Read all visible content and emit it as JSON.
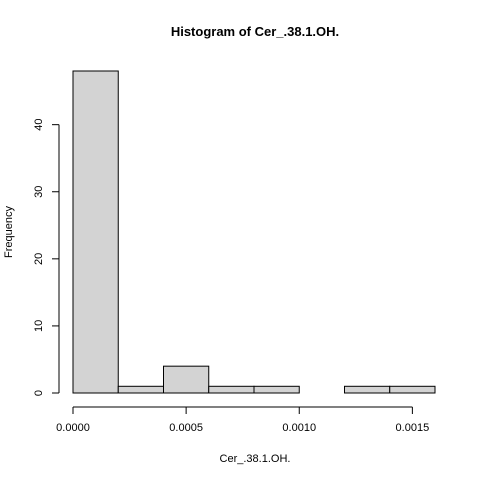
{
  "chart_data": {
    "type": "bar",
    "title": "Histogram of Cer_.38.1.OH.",
    "xlabel": "Cer_.38.1.OH.",
    "ylabel": "Frequency",
    "bins": [
      {
        "start": 0.0,
        "end": 0.0002,
        "count": 48
      },
      {
        "start": 0.0002,
        "end": 0.0004,
        "count": 1
      },
      {
        "start": 0.0004,
        "end": 0.0006,
        "count": 4
      },
      {
        "start": 0.0006,
        "end": 0.0008,
        "count": 1
      },
      {
        "start": 0.0008,
        "end": 0.001,
        "count": 1
      },
      {
        "start": 0.001,
        "end": 0.0012,
        "count": 0
      },
      {
        "start": 0.0012,
        "end": 0.0014,
        "count": 1
      },
      {
        "start": 0.0014,
        "end": 0.0016,
        "count": 1
      }
    ],
    "x_ticks": [
      {
        "value": 0.0,
        "label": "0.0000"
      },
      {
        "value": 0.0005,
        "label": "0.0005"
      },
      {
        "value": 0.001,
        "label": "0.0010"
      },
      {
        "value": 0.0015,
        "label": "0.0015"
      }
    ],
    "y_ticks": [
      {
        "value": 0,
        "label": "0"
      },
      {
        "value": 10,
        "label": "10"
      },
      {
        "value": 20,
        "label": "20"
      },
      {
        "value": 30,
        "label": "30"
      },
      {
        "value": 40,
        "label": "40"
      }
    ],
    "xlim": [
      0.0,
      0.0016
    ],
    "ylim": [
      0,
      48
    ],
    "grid": false,
    "bar_fill": "#d3d3d3",
    "bar_stroke": "#000000"
  }
}
